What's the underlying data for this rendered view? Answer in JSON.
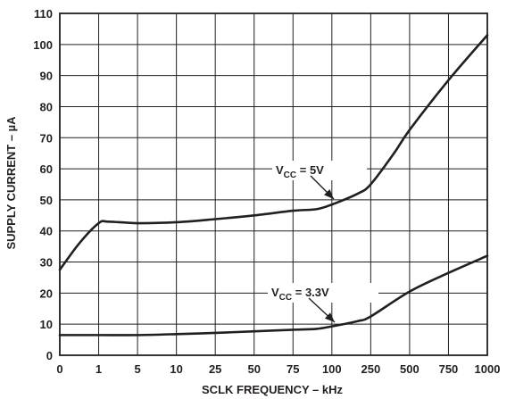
{
  "chart_data": {
    "type": "line",
    "title": "",
    "xlabel": "SCLK FREQUENCY – kHz",
    "ylabel": "SUPPLY CURRENT – µA",
    "x_scale": "categorical-ticks",
    "x_ticks": [
      "0",
      "1",
      "5",
      "10",
      "25",
      "50",
      "75",
      "100",
      "250",
      "500",
      "750",
      "1000"
    ],
    "y_ticks": [
      "0",
      "10",
      "20",
      "30",
      "40",
      "50",
      "60",
      "70",
      "80",
      "90",
      "100",
      "110"
    ],
    "ylim": [
      0,
      110
    ],
    "grid": true,
    "legend": "none",
    "series": [
      {
        "label_main": "V",
        "label_sub": "CC",
        "label_rest": " = 5V",
        "points": [
          [
            "0",
            27.5
          ],
          [
            "0.5",
            36
          ],
          [
            "1",
            42.5
          ],
          [
            "2",
            43
          ],
          [
            "5",
            42.5
          ],
          [
            "10",
            42.8
          ],
          [
            "25",
            43.8
          ],
          [
            "50",
            45
          ],
          [
            "75",
            46.5
          ],
          [
            "90",
            47
          ],
          [
            "100",
            48.5
          ],
          [
            "200",
            52
          ],
          [
            "250",
            55
          ],
          [
            "400",
            65
          ],
          [
            "500",
            72.5
          ],
          [
            "750",
            88.5
          ],
          [
            "1000",
            103
          ]
        ]
      },
      {
        "label_main": "V",
        "label_sub": "CC",
        "label_rest": " = 3.3V",
        "points": [
          [
            "0",
            6.5
          ],
          [
            "1",
            6.5
          ],
          [
            "5",
            6.5
          ],
          [
            "10",
            6.8
          ],
          [
            "25",
            7.2
          ],
          [
            "50",
            7.7
          ],
          [
            "75",
            8.2
          ],
          [
            "90",
            8.5
          ],
          [
            "100",
            9.3
          ],
          [
            "200",
            11
          ],
          [
            "250",
            12.5
          ],
          [
            "500",
            20.5
          ],
          [
            "750",
            26.5
          ],
          [
            "1000",
            32
          ]
        ]
      }
    ]
  },
  "colors": {
    "line": "#231f20",
    "grid": "#231f20",
    "background": "#ffffff"
  }
}
